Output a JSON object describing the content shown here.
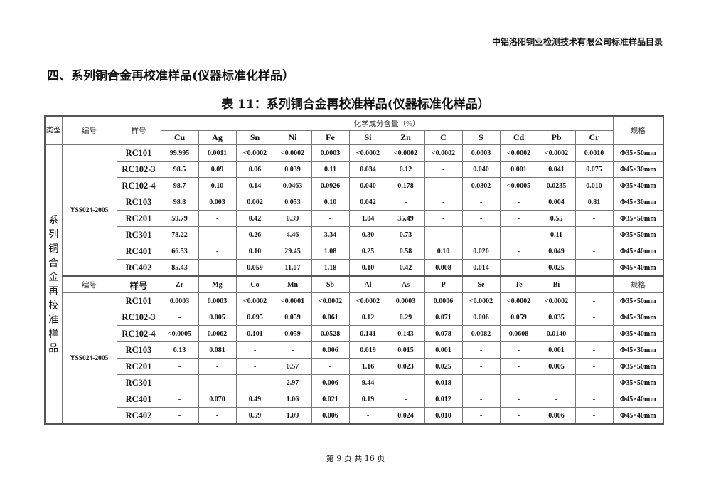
{
  "header": {
    "org_title": "中铝洛阳铜业检测技术有限公司标准样品目录"
  },
  "section_title": "四、系列铜合金再校准样品(仪器标准化样品）",
  "table_title": "表 11：系列铜合金再校准样品(仪器标准化样品）",
  "table": {
    "type_header": "类型",
    "type_value": "系列铜合金再校准样品",
    "code_header": "编号",
    "sample_header": "样号",
    "composition_header": "化学成分含量（%）",
    "spec_header": "规格",
    "part1": {
      "code": "YSS024-2005",
      "elements": [
        "Cu",
        "Ag",
        "Sn",
        "Ni",
        "Fe",
        "Si",
        "Zn",
        "C",
        "S",
        "Cd",
        "Pb",
        "Cr"
      ],
      "rows": [
        {
          "sample": "RC101",
          "values": [
            "99.995",
            "0.0011",
            "<0.0002",
            "<0.0002",
            "0.0003",
            "<0.0002",
            "<0.0002",
            "<0.0002",
            "0.0003",
            "<0.0002",
            "<0.0002",
            "0.0010"
          ],
          "spec": "Φ35×50mm"
        },
        {
          "sample": "RC102-3",
          "values": [
            "98.5",
            "0.09",
            "0.06",
            "0.039",
            "0.11",
            "0.034",
            "0.12",
            "-",
            "0.040",
            "0.001",
            "0.041",
            "0.075"
          ],
          "spec": "Φ45×30mm"
        },
        {
          "sample": "RC102-4",
          "values": [
            "98.7",
            "0.10",
            "0.14",
            "0.0463",
            "0.0926",
            "0.040",
            "0.178",
            "-",
            "0.0302",
            "<0.0005",
            "0.0235",
            "0.010"
          ],
          "spec": "Φ35×40mm"
        },
        {
          "sample": "RC103",
          "values": [
            "98.8",
            "0.003",
            "0.002",
            "0.053",
            "0.10",
            "0.042",
            "-",
            "-",
            "-",
            "-",
            "0.004",
            "0.81"
          ],
          "spec": "Φ45×30mm"
        },
        {
          "sample": "RC201",
          "values": [
            "59.79",
            "-",
            "0.42",
            "0.39",
            "-",
            "1.04",
            "35.49",
            "-",
            "-",
            "-",
            "0.55",
            "-"
          ],
          "spec": "Φ35×50mm"
        },
        {
          "sample": "RC301",
          "values": [
            "78.22",
            "-",
            "0.26",
            "4.46",
            "3.34",
            "0.30",
            "0.73",
            "-",
            "-",
            "-",
            "0.11",
            "-"
          ],
          "spec": "Φ35×50mm"
        },
        {
          "sample": "RC401",
          "values": [
            "66.53",
            "-",
            "0.10",
            "29.45",
            "1.08",
            "0.25",
            "0.58",
            "0.10",
            "0.020",
            "-",
            "0.049",
            "-"
          ],
          "spec": "Φ45×40mm"
        },
        {
          "sample": "RC402",
          "values": [
            "85.43",
            "-",
            "0.059",
            "11.07",
            "1.18",
            "0.10",
            "0.42",
            "0.008",
            "0.014",
            "-",
            "0.025",
            "-"
          ],
          "spec": "Φ45×40mm"
        }
      ]
    },
    "part2": {
      "code_header": "编号",
      "sample_header": "样号",
      "spec_header": "规格",
      "code": "YSS024-2005",
      "elements": [
        "Zr",
        "Mg",
        "Co",
        "Mn",
        "Sb",
        "Al",
        "As",
        "P",
        "Se",
        "Te",
        "Bi",
        "-"
      ],
      "rows": [
        {
          "sample": "RC101",
          "values": [
            "0.0003",
            "0.0003",
            "<0.0002",
            "<0.0001",
            "<0.0002",
            "<0.0002",
            "0.0003",
            "0.0006",
            "<0.0002",
            "<0.0002",
            "<0.0002",
            "-"
          ],
          "spec": "Φ35×50mm"
        },
        {
          "sample": "RC102-3",
          "values": [
            "-",
            "0.005",
            "0.095",
            "0.059",
            "0.061",
            "0.12",
            "0.29",
            "0.071",
            "0.006",
            "0.059",
            "0.035",
            "-"
          ],
          "spec": "Φ45×30mm"
        },
        {
          "sample": "RC102-4",
          "values": [
            "<0.0005",
            "0.0062",
            "0.101",
            "0.059",
            "0.0528",
            "0.141",
            "0.143",
            "0.078",
            "0.0082",
            "0.0608",
            "0.0140",
            "-"
          ],
          "spec": "Φ35×40mm"
        },
        {
          "sample": "RC103",
          "values": [
            "0.13",
            "0.081",
            "-",
            "-",
            "0.006",
            "0.019",
            "0.015",
            "0.001",
            "-",
            "-",
            "0.001",
            "-"
          ],
          "spec": "Φ45×30mm"
        },
        {
          "sample": "RC201",
          "values": [
            "-",
            "-",
            "-",
            "0.57",
            "-",
            "1.16",
            "0.023",
            "0.025",
            "-",
            "-",
            "0.005",
            "-"
          ],
          "spec": "Φ35×50mm"
        },
        {
          "sample": "RC301",
          "values": [
            "-",
            "-",
            "-",
            "2.97",
            "0.006",
            "9.44",
            "-",
            "0.018",
            "-",
            "-",
            "-",
            "-"
          ],
          "spec": "Φ35×50mm"
        },
        {
          "sample": "RC401",
          "values": [
            "-",
            "0.070",
            "0.49",
            "1.06",
            "0.021",
            "0.19",
            "-",
            "0.012",
            "-",
            "-",
            "-",
            "-"
          ],
          "spec": "Φ45×40mm"
        },
        {
          "sample": "RC402",
          "values": [
            "-",
            "-",
            "0.59",
            "1.09",
            "0.006",
            "-",
            "0.024",
            "0.010",
            "-",
            "-",
            "0.006",
            "-"
          ],
          "spec": "Φ45×40mm"
        }
      ]
    }
  },
  "footer": {
    "page_text": "第 9 页 共 16 页"
  }
}
